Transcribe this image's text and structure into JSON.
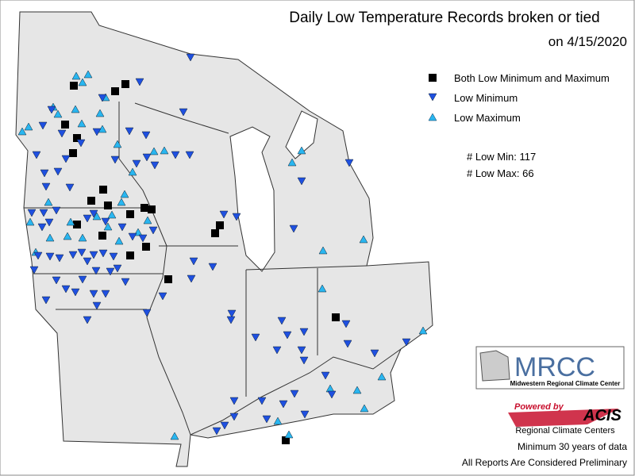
{
  "title": "Daily Low Temperature Records broken or tied",
  "subtitle": "on 4/15/2020",
  "legend": [
    "Both Low Minimum and Maximum",
    "Low Minimum",
    "Low Maximum"
  ],
  "counts": [
    "# Low Min: 117",
    "# Low Max: 66"
  ],
  "logo": {
    "name": "MRCC",
    "full": "Midwestern Regional Climate Center"
  },
  "acis": {
    "powered": "Powered by",
    "name": "ACIS",
    "full": "Regional Climate Centers"
  },
  "notes": [
    "Minimum 30 years of data",
    "All Reports Are Considered Preliminary"
  ]
}
